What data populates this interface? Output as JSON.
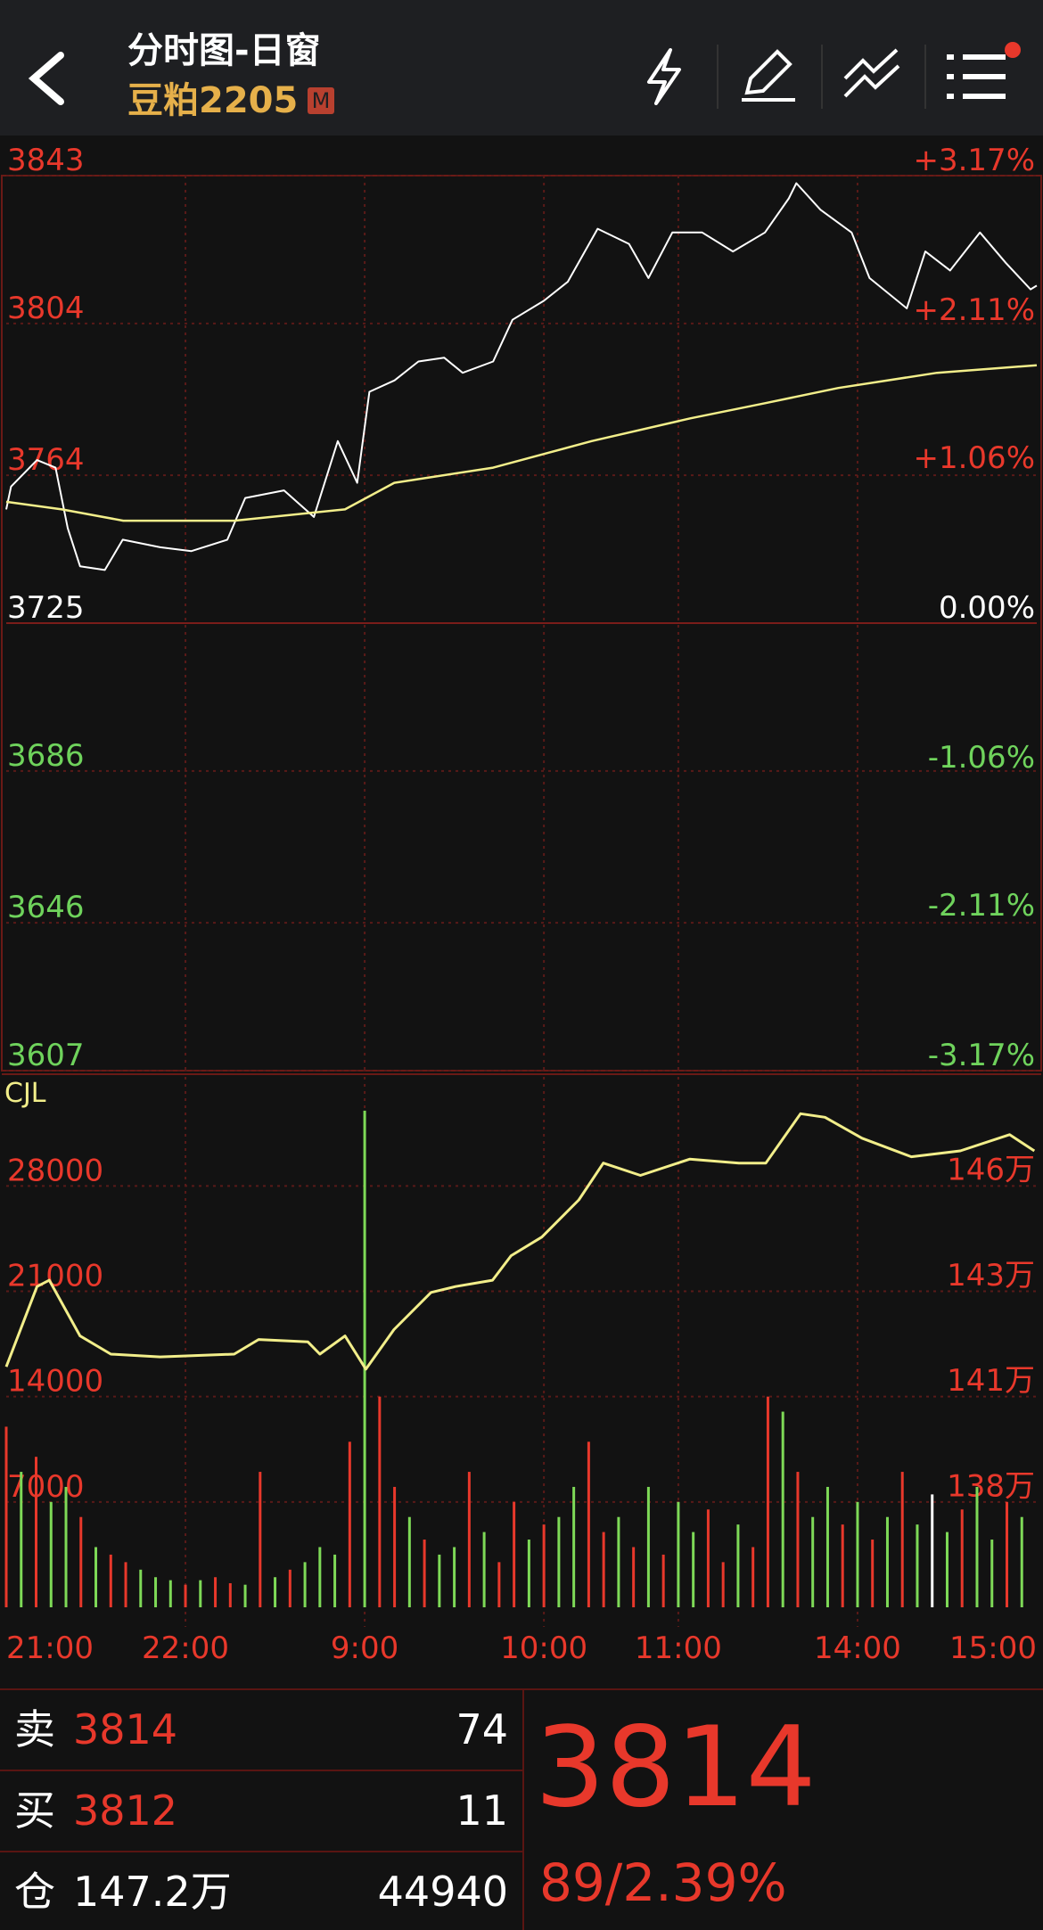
{
  "header": {
    "title": "分时图-日窗",
    "contract": "豆粕2205",
    "badge": "M"
  },
  "chart_data": [
    {
      "type": "line",
      "xlim": [
        0,
        345
      ],
      "ylim": [
        3607,
        3843
      ],
      "yticks": [
        3843,
        3804,
        3764,
        3725,
        3686,
        3646,
        3607
      ],
      "y2lim": [
        -3.17,
        3.17
      ],
      "y2ticks": [
        {
          "value": 3.17,
          "label": "+3.17%"
        },
        {
          "value": 2.11,
          "label": "+2.11%"
        },
        {
          "value": 1.06,
          "label": "+1.06%"
        },
        {
          "value": 0,
          "label": "0.00%"
        },
        {
          "value": -1.06,
          "label": "-1.06%"
        },
        {
          "value": -2.11,
          "label": "-2.11%"
        },
        {
          "value": -3.17,
          "label": "-3.17%"
        }
      ],
      "series": [
        {
          "color": "#ffffff",
          "x": [
            0,
            1.6,
            10.3,
            16.5,
            20.6,
            24.7,
            33,
            39,
            51.5,
            62,
            74,
            80,
            93,
            103,
            111,
            117.5,
            121.6,
            130,
            138,
            146.6,
            152.8,
            163,
            169.5,
            180,
            188,
            198,
            208.5,
            215,
            223,
            233,
            243.3,
            254,
            262,
            264.5,
            272.6,
            283,
            289,
            301.5,
            307.7,
            316,
            326,
            334.6,
            342.9,
            345
          ],
          "values": [
            3755,
            3761,
            3768,
            3766,
            3750,
            3740,
            3739,
            3747,
            3745,
            3744,
            3747,
            3758,
            3760,
            3753,
            3773,
            3762,
            3786,
            3789,
            3794,
            3795,
            3791,
            3794,
            3805,
            3810,
            3815,
            3829,
            3825,
            3816,
            3828,
            3828,
            3823,
            3828,
            3837,
            3841,
            3834,
            3828,
            3816,
            3808,
            3823,
            3818,
            3828,
            3820,
            3813,
            3814
          ]
        },
        {
          "color": "#f2ee8a",
          "x": [
            0,
            18.6,
            39.2,
            76.3,
            113.4,
            129.9,
            163,
            196,
            229,
            254,
            278.6,
            311.6,
            345
          ],
          "values": [
            3757,
            3755,
            3752,
            3752,
            3755,
            3762,
            3766,
            3773,
            3779,
            3783,
            3787,
            3791,
            3793
          ]
        }
      ]
    },
    {
      "type": "bar",
      "title": "CJL",
      "xlim": [
        0,
        345
      ],
      "xticks": [
        {
          "value": 0,
          "label": "21:00"
        },
        {
          "value": 60,
          "label": "22:00"
        },
        {
          "value": 120,
          "label": "9:00"
        },
        {
          "value": 180,
          "label": "10:00"
        },
        {
          "value": 225,
          "label": "11:00"
        },
        {
          "value": 285,
          "label": "14:00"
        },
        {
          "value": 345,
          "label": "15:00"
        }
      ],
      "ylim": [
        0,
        35246
      ],
      "yticks": [
        28000,
        21000,
        14000,
        7000
      ],
      "y2lim": [
        135.33,
        148.74
      ],
      "y2ticks": [
        {
          "value": 146,
          "label": "146万"
        },
        {
          "value": 143.33,
          "label": "143万"
        },
        {
          "value": 140.67,
          "label": "141万"
        },
        {
          "value": 138,
          "label": "138万"
        }
      ],
      "x": [
        0,
        5,
        10,
        15,
        20,
        25,
        30,
        35,
        40,
        45,
        50,
        55,
        60,
        65,
        70,
        75,
        80,
        85,
        90,
        95,
        100,
        105,
        110,
        115,
        120,
        125,
        130,
        135,
        140,
        145,
        150,
        155,
        160,
        165,
        170,
        175,
        180,
        185,
        190,
        195,
        200,
        205,
        210,
        215,
        220,
        225,
        230,
        235,
        240,
        245,
        250,
        255,
        260,
        265,
        270,
        275,
        280,
        285,
        290,
        295,
        300,
        305,
        310,
        315,
        320,
        325,
        330,
        335,
        340
      ],
      "values": [
        12000,
        9000,
        10000,
        7000,
        8000,
        6000,
        4000,
        3500,
        3000,
        2500,
        2000,
        1800,
        1500,
        1800,
        2000,
        1600,
        1500,
        9000,
        2000,
        2500,
        3000,
        4000,
        3500,
        11000,
        33000,
        14000,
        8000,
        6000,
        4500,
        3500,
        4000,
        9000,
        5000,
        3000,
        7000,
        4500,
        5500,
        6000,
        8000,
        11000,
        5000,
        6000,
        4000,
        8000,
        3500,
        7000,
        5000,
        6500,
        3000,
        5500,
        4000,
        14000,
        13000,
        9000,
        6000,
        8000,
        5500,
        7000,
        4500,
        6000,
        9000,
        5500,
        7500,
        5000,
        6500,
        8000,
        4500,
        7000,
        6000
      ],
      "colors": [
        "#e8382b",
        "#7ed957",
        "#e8382b",
        "#7ed957",
        "#7ed957",
        "#e8382b",
        "#7ed957",
        "#e8382b",
        "#e8382b",
        "#7ed957",
        "#7ed957",
        "#7ed957",
        "#e8382b",
        "#7ed957",
        "#e8382b",
        "#e8382b",
        "#7ed957",
        "#e8382b",
        "#7ed957",
        "#e8382b",
        "#7ed957",
        "#7ed957",
        "#7ed957",
        "#e8382b",
        "#7ed957",
        "#e8382b",
        "#e8382b",
        "#7ed957",
        "#e8382b",
        "#7ed957",
        "#7ed957",
        "#e8382b",
        "#7ed957",
        "#e8382b",
        "#e8382b",
        "#7ed957",
        "#e8382b",
        "#7ed957",
        "#7ed957",
        "#e8382b",
        "#e8382b",
        "#7ed957",
        "#e8382b",
        "#7ed957",
        "#e8382b",
        "#7ed957",
        "#7ed957",
        "#e8382b",
        "#e8382b",
        "#7ed957",
        "#e8382b",
        "#e8382b",
        "#7ed957",
        "#e8382b",
        "#7ed957",
        "#7ed957",
        "#e8382b",
        "#7ed957",
        "#e8382b",
        "#7ed957",
        "#e8382b",
        "#7ed957",
        "#ffffff",
        "#7ed957",
        "#e8382b",
        "#7ed957",
        "#7ed957",
        "#e8382b",
        "#7ed957"
      ],
      "line": {
        "color": "#f2ee8a",
        "axis": "y2",
        "x": [
          0,
          10.3,
          14.4,
          24.7,
          35,
          51.5,
          76.3,
          84.5,
          101,
          105,
          113.4,
          120.4,
          129.8,
          142.2,
          150.4,
          162.8,
          169,
          179.3,
          191.7,
          199.9,
          212.3,
          228.8,
          245.3,
          254.3,
          265.9,
          274.1,
          286.5,
          303,
          319.4,
          335.9,
          344.2
        ],
        "values": [
          141.41,
          143.44,
          143.6,
          142.19,
          141.73,
          141.66,
          141.73,
          142.1,
          142.04,
          141.73,
          142.19,
          141.35,
          142.35,
          143.29,
          143.44,
          143.6,
          144.22,
          144.69,
          145.63,
          146.56,
          146.25,
          146.66,
          146.56,
          146.56,
          147.81,
          147.72,
          147.19,
          146.72,
          146.87,
          147.28,
          146.87
        ]
      }
    }
  ],
  "quote": {
    "rows": [
      {
        "label": "卖",
        "price": 3814,
        "volume": 74
      },
      {
        "label": "买",
        "price": 3812,
        "volume": 11
      },
      {
        "label": "仓",
        "price": "147.2万",
        "volume": 44940
      }
    ],
    "last": 3814,
    "change": "89/2.39%"
  }
}
